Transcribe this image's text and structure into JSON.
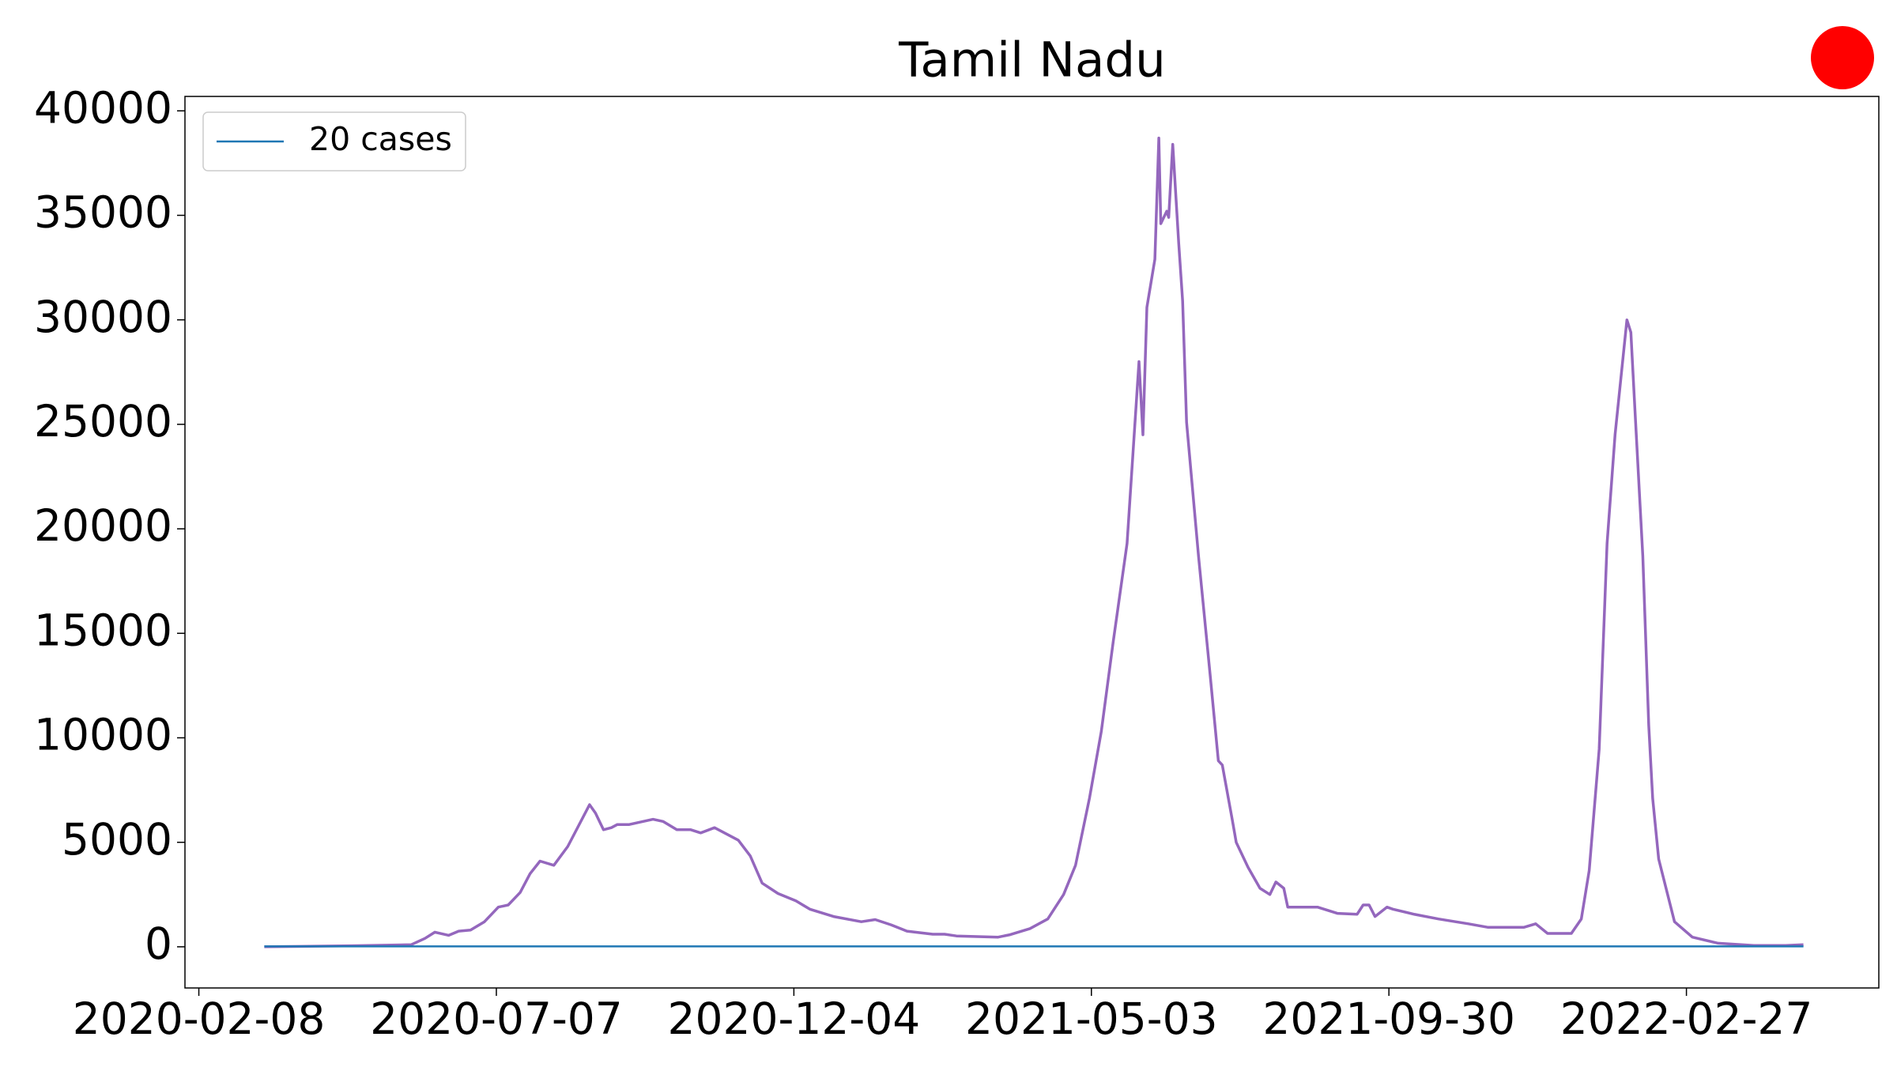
{
  "chart_data": {
    "type": "line",
    "title": "Tamil Nadu",
    "x": [
      "2020-03-12",
      "2020-04-25",
      "2020-05-25",
      "2020-06-01",
      "2020-06-06",
      "2020-06-13",
      "2020-06-18",
      "2020-06-24",
      "2020-07-01",
      "2020-07-08",
      "2020-07-13",
      "2020-07-19",
      "2020-07-24",
      "2020-07-29",
      "2020-08-05",
      "2020-08-12",
      "2020-08-23",
      "2020-08-26",
      "2020-08-30",
      "2020-09-03",
      "2020-09-06",
      "2020-09-12",
      "2020-09-24",
      "2020-09-29",
      "2020-10-06",
      "2020-10-13",
      "2020-10-18",
      "2020-10-25",
      "2020-11-06",
      "2020-11-12",
      "2020-11-18",
      "2020-11-26",
      "2020-12-05",
      "2020-12-12",
      "2020-12-24",
      "2021-01-07",
      "2021-01-14",
      "2021-01-22",
      "2021-01-30",
      "2021-02-12",
      "2021-02-18",
      "2021-02-24",
      "2021-03-17",
      "2021-03-23",
      "2021-04-02",
      "2021-04-11",
      "2021-04-19",
      "2021-04-25",
      "2021-05-02",
      "2021-05-08",
      "2021-05-14",
      "2021-05-21",
      "2021-05-27",
      "2021-05-29",
      "2021-05-31",
      "2021-06-04",
      "2021-06-06",
      "2021-06-07",
      "2021-06-10",
      "2021-06-11",
      "2021-06-13",
      "2021-06-16",
      "2021-06-18",
      "2021-06-20",
      "2021-06-26",
      "2021-07-02",
      "2021-07-06",
      "2021-07-08",
      "2021-07-13",
      "2021-07-15",
      "2021-07-21",
      "2021-07-27",
      "2021-08-01",
      "2021-08-04",
      "2021-08-08",
      "2021-08-10",
      "2021-08-25",
      "2021-09-04",
      "2021-09-14",
      "2021-09-17",
      "2021-09-20",
      "2021-09-23",
      "2021-09-29",
      "2021-10-02",
      "2021-10-13",
      "2021-10-25",
      "2021-11-09",
      "2021-11-19",
      "2021-12-07",
      "2021-12-13",
      "2021-12-19",
      "2021-12-31",
      "2022-01-05",
      "2022-01-09",
      "2022-01-14",
      "2022-01-18",
      "2022-01-22",
      "2022-01-28",
      "2022-01-30",
      "2022-02-01",
      "2022-02-05",
      "2022-02-08",
      "2022-02-10",
      "2022-02-13",
      "2022-02-21",
      "2022-03-02",
      "2022-03-15",
      "2022-04-02",
      "2022-04-18",
      "2022-04-27"
    ],
    "series": [
      {
        "color": "#9467bd",
        "values": [
          0,
          50,
          100,
          400,
          700,
          550,
          750,
          800,
          1200,
          1900,
          2000,
          2600,
          3500,
          4100,
          3900,
          4800,
          6800,
          6400,
          5600,
          5700,
          5850,
          5850,
          6100,
          6000,
          5600,
          5600,
          5450,
          5700,
          5100,
          4350,
          3050,
          2550,
          2200,
          1800,
          1450,
          1200,
          1300,
          1050,
          750,
          600,
          600,
          520,
          460,
          580,
          870,
          1330,
          2500,
          3900,
          7100,
          10300,
          14600,
          19300,
          28000,
          24500,
          30600,
          32900,
          38700,
          34600,
          35200,
          34900,
          38400,
          33700,
          30900,
          25100,
          18700,
          12900,
          8900,
          8700,
          6100,
          5000,
          3800,
          2800,
          2500,
          3100,
          2800,
          1900,
          1900,
          1600,
          1560,
          2000,
          2000,
          1450,
          1900,
          1800,
          1550,
          1330,
          1100,
          930,
          930,
          1100,
          640,
          640,
          1330,
          3650,
          9450,
          19300,
          24500,
          30000,
          29400,
          25800,
          18700,
          10600,
          7100,
          4200,
          1200,
          460,
          170,
          60,
          60,
          100
        ]
      }
    ],
    "reference_line": {
      "name": "20 cases",
      "value": 20,
      "color": "#1f77b4"
    },
    "xlim": [
      "2020-02-01",
      "2022-06-04"
    ],
    "xticks": [
      "2020-02-08",
      "2020-07-07",
      "2020-12-04",
      "2021-05-03",
      "2021-09-30",
      "2022-02-27"
    ],
    "ylim": [
      -1970,
      40690
    ],
    "yticks": [
      0,
      5000,
      10000,
      15000,
      20000,
      25000,
      30000,
      35000,
      40000
    ],
    "legend": "upper left"
  }
}
